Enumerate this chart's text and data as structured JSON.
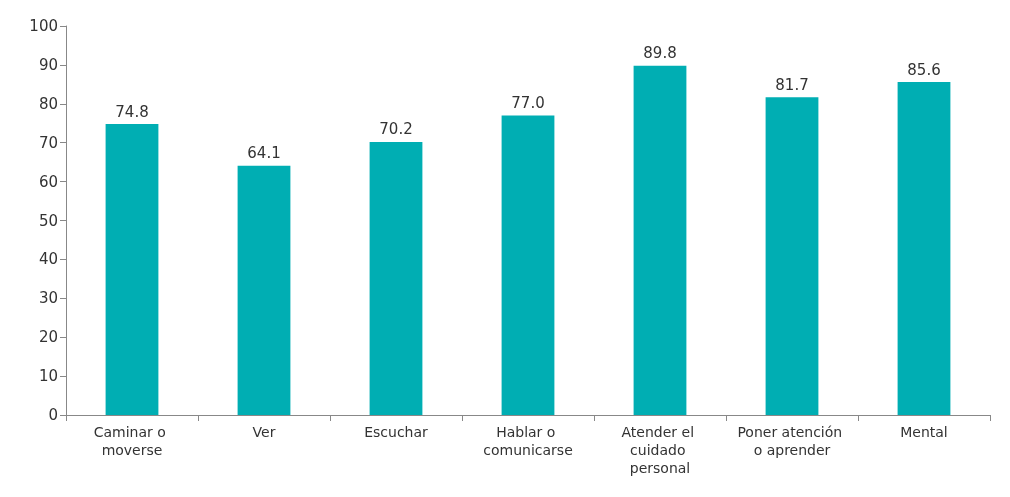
{
  "chart_data": {
    "type": "bar",
    "categories": [
      "Caminar o moverse",
      "Ver",
      "Escuchar",
      "Hablar o comunicarse",
      "Atender el cuidado personal",
      "Poner atención o aprender",
      "Mental"
    ],
    "values": [
      74.8,
      64.1,
      70.2,
      77.0,
      89.8,
      81.7,
      85.6
    ],
    "value_labels": [
      "74.8",
      "64.1",
      "70.2",
      "77.0",
      "89.8",
      "81.7",
      "85.6"
    ],
    "color": "#00aeb3",
    "ylim": [
      0,
      100
    ],
    "yticks": [
      0,
      10,
      20,
      30,
      40,
      50,
      60,
      70,
      80,
      90,
      100
    ],
    "grid": false
  }
}
